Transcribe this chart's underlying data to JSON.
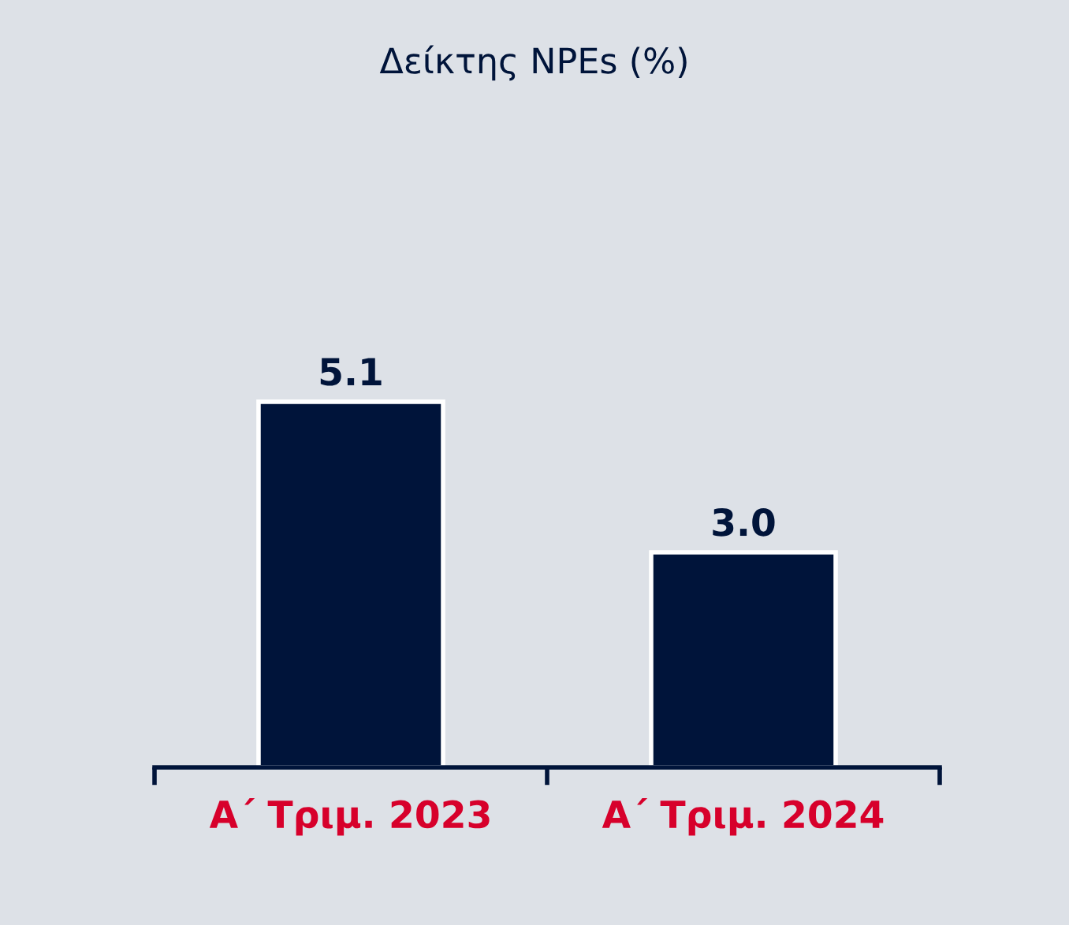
{
  "chart_data": {
    "type": "bar",
    "title": "Δείκτης NPEs (%)",
    "categories": [
      "Α΄ Τριμ. 2023",
      "Α΄ Τριμ. 2024"
    ],
    "values": [
      5.1,
      3.0
    ],
    "value_labels": [
      "5.1",
      "3.0"
    ],
    "color": "#00143a",
    "grid": false,
    "legend": false
  }
}
